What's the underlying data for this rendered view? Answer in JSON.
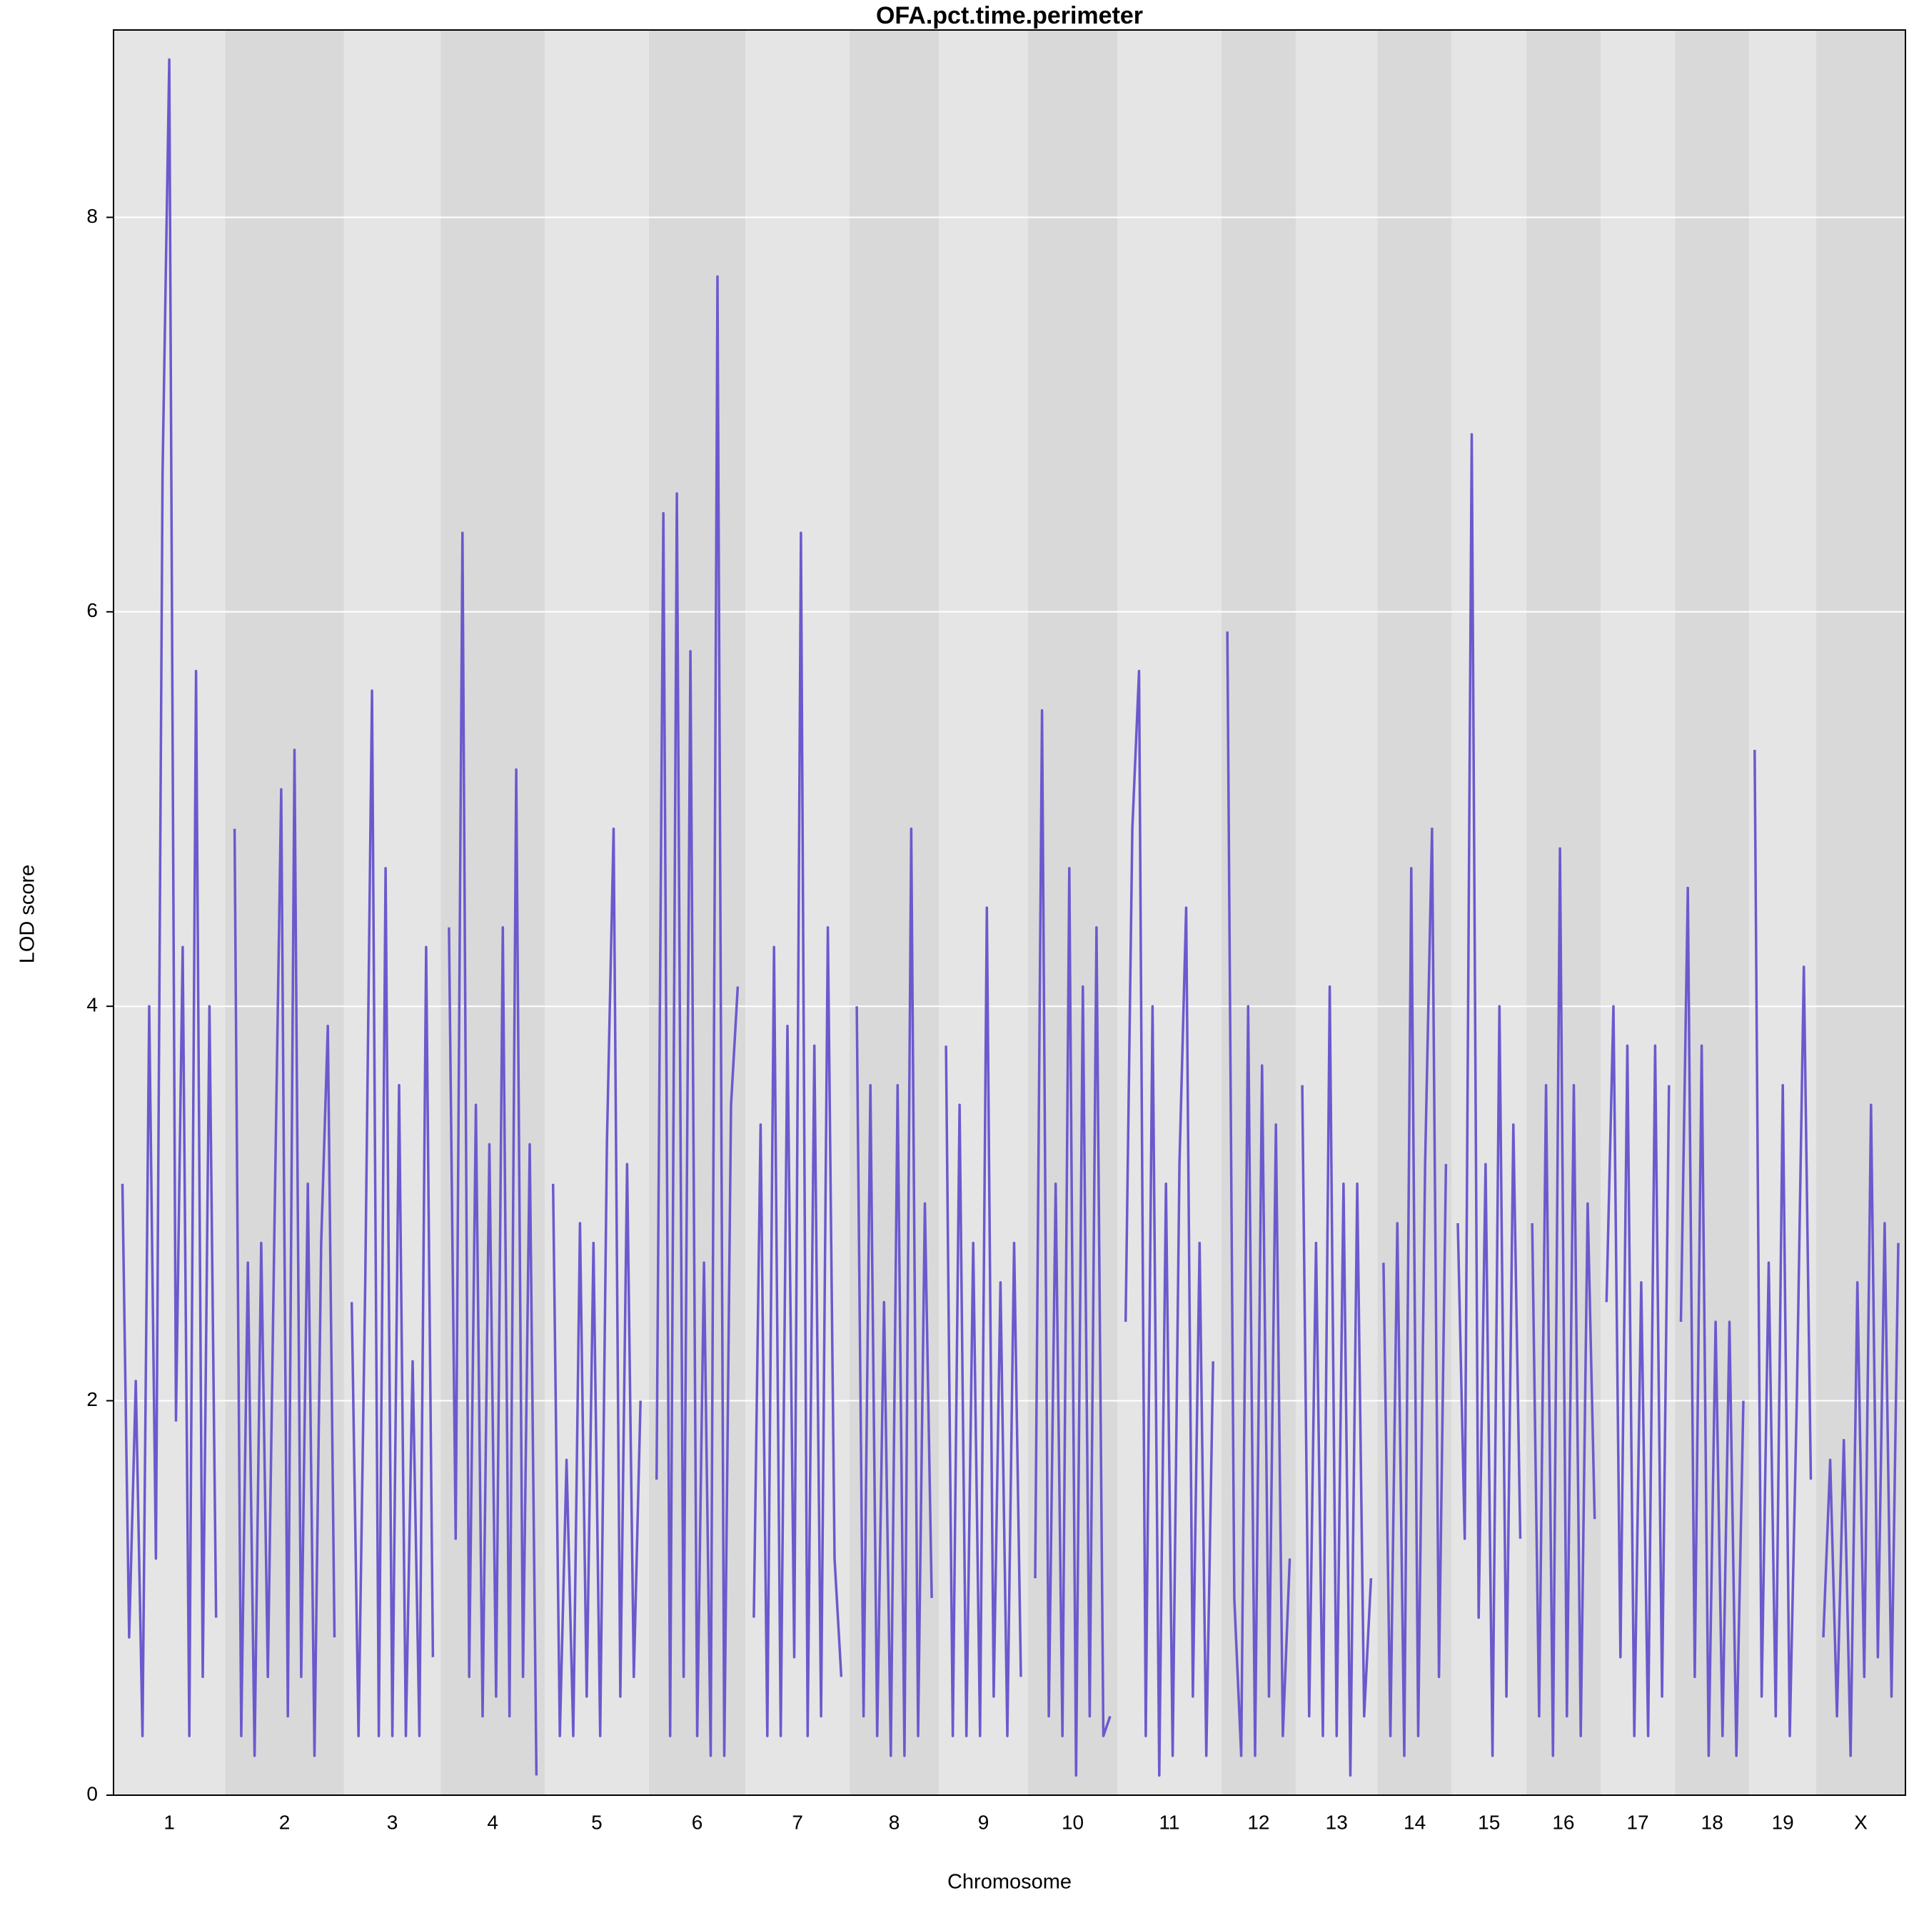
{
  "chart_data": {
    "type": "line",
    "title": "OFA.pct.time.perimeter",
    "xlabel": "Chromosome",
    "ylabel": "LOD score",
    "color": "#6a5acd",
    "ylim": [
      0,
      8.95
    ],
    "yticks": [
      0,
      2,
      4,
      6,
      8
    ],
    "grid": true,
    "chromosomes": [
      {
        "name": "1",
        "values": [
          3.1,
          0.8,
          2.1,
          0.3,
          4.0,
          1.2,
          6.7,
          8.8,
          1.9,
          4.3,
          0.3,
          5.7,
          0.6,
          4.0,
          0.9
        ]
      },
      {
        "name": "2",
        "values": [
          4.9,
          0.3,
          2.7,
          0.2,
          2.8,
          0.6,
          2.9,
          5.1,
          0.4,
          5.3,
          0.6,
          3.1,
          0.2,
          2.8,
          3.9,
          0.8
        ]
      },
      {
        "name": "3",
        "values": [
          2.5,
          0.3,
          2.6,
          5.6,
          0.3,
          4.7,
          0.3,
          3.6,
          0.3,
          2.2,
          0.3,
          4.3,
          0.7
        ]
      },
      {
        "name": "4",
        "values": [
          4.4,
          1.3,
          6.4,
          0.6,
          3.5,
          0.4,
          3.3,
          0.5,
          4.4,
          0.4,
          5.2,
          0.6,
          3.3,
          0.1
        ]
      },
      {
        "name": "5",
        "values": [
          3.1,
          0.3,
          1.7,
          0.3,
          2.9,
          0.5,
          2.8,
          0.3,
          3.3,
          4.9,
          0.5,
          3.2,
          0.6,
          2.0
        ]
      },
      {
        "name": "6",
        "values": [
          1.6,
          6.5,
          0.3,
          6.6,
          0.6,
          5.8,
          0.3,
          2.7,
          0.2,
          7.7,
          0.2,
          3.5,
          4.1
        ]
      },
      {
        "name": "7",
        "values": [
          0.9,
          3.4,
          0.3,
          4.3,
          0.3,
          3.9,
          0.7,
          6.4,
          0.3,
          3.8,
          0.4,
          4.4,
          1.2,
          0.6
        ]
      },
      {
        "name": "8",
        "values": [
          4.0,
          0.4,
          3.6,
          0.3,
          2.5,
          0.2,
          3.6,
          0.2,
          4.9,
          0.3,
          3.0,
          1.0
        ]
      },
      {
        "name": "9",
        "values": [
          3.8,
          0.3,
          3.5,
          0.3,
          2.8,
          0.3,
          4.5,
          0.5,
          2.6,
          0.3,
          2.8,
          0.6
        ]
      },
      {
        "name": "10",
        "values": [
          1.1,
          5.5,
          0.4,
          3.1,
          0.3,
          4.7,
          0.1,
          4.1,
          0.4,
          4.4,
          0.3,
          0.4
        ]
      },
      {
        "name": "11",
        "values": [
          2.4,
          4.9,
          5.7,
          0.3,
          4.0,
          0.1,
          3.1,
          0.2,
          3.2,
          4.5,
          0.5,
          2.8,
          0.2,
          2.2
        ]
      },
      {
        "name": "12",
        "values": [
          5.9,
          1.0,
          0.2,
          4.0,
          0.2,
          3.7,
          0.5,
          3.4,
          0.3,
          1.2
        ]
      },
      {
        "name": "13",
        "values": [
          3.6,
          0.4,
          2.8,
          0.3,
          4.1,
          0.3,
          3.1,
          0.1,
          3.1,
          0.4,
          1.1
        ]
      },
      {
        "name": "14",
        "values": [
          2.7,
          0.3,
          2.9,
          0.2,
          4.7,
          0.3,
          3.2,
          4.9,
          0.6,
          3.2
        ]
      },
      {
        "name": "15",
        "values": [
          2.9,
          1.3,
          6.9,
          0.9,
          3.2,
          0.2,
          4.0,
          0.5,
          3.4,
          1.3
        ]
      },
      {
        "name": "16",
        "values": [
          2.9,
          0.4,
          3.6,
          0.2,
          4.8,
          0.4,
          3.6,
          0.3,
          3.0,
          1.4
        ]
      },
      {
        "name": "17",
        "values": [
          2.5,
          4.0,
          0.7,
          3.8,
          0.3,
          2.6,
          0.3,
          3.8,
          0.5,
          3.6
        ]
      },
      {
        "name": "18",
        "values": [
          2.4,
          4.6,
          0.6,
          3.8,
          0.2,
          2.4,
          0.3,
          2.4,
          0.2,
          2.0
        ]
      },
      {
        "name": "19",
        "values": [
          5.3,
          0.5,
          2.7,
          0.4,
          3.6,
          0.3,
          2.0,
          4.2,
          1.6
        ]
      },
      {
        "name": "X",
        "values": [
          0.8,
          1.7,
          0.4,
          1.8,
          0.2,
          2.6,
          0.6,
          3.5,
          0.7,
          2.9,
          0.5,
          2.8
        ]
      }
    ]
  }
}
